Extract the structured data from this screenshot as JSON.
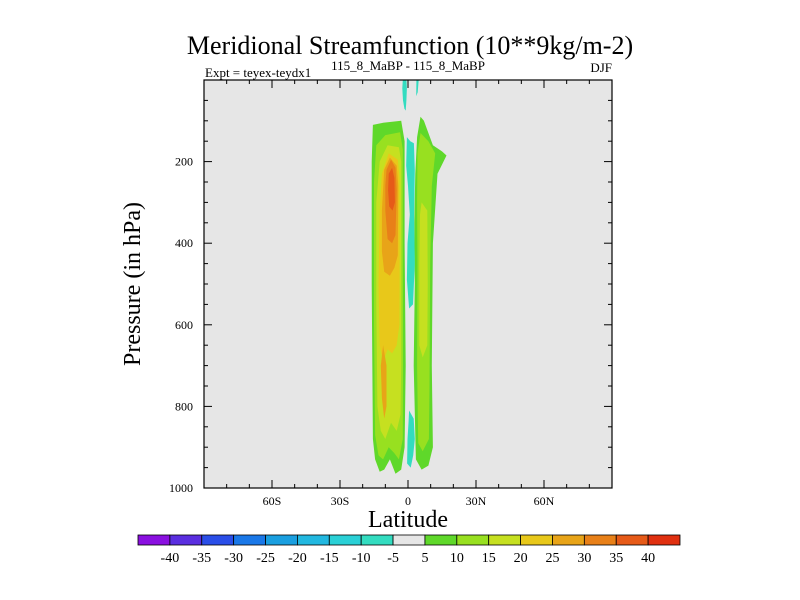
{
  "chart_data": {
    "type": "contour",
    "title": "Meridional Streamfunction (10**9kg/m-2)",
    "subtitle_left": "Expt = teyex-teydx1",
    "subtitle_center": "115_8_MaBP - 115_8_MaBP",
    "season": "DJF",
    "xlabel": "Latitude",
    "ylabel": "Pressure (in hPa)",
    "xlim": [
      -90,
      90
    ],
    "ylim": [
      0,
      1000
    ],
    "y_inverted": true,
    "x_ticks": [
      {
        "value": -60,
        "label": "60S"
      },
      {
        "value": -30,
        "label": "30S"
      },
      {
        "value": 0,
        "label": "0"
      },
      {
        "value": 30,
        "label": "30N"
      },
      {
        "value": 60,
        "label": "60N"
      }
    ],
    "y_ticks": [
      {
        "value": 200,
        "label": "200"
      },
      {
        "value": 400,
        "label": "400"
      },
      {
        "value": 600,
        "label": "600"
      },
      {
        "value": 800,
        "label": "800"
      },
      {
        "value": 1000,
        "label": "1000"
      }
    ],
    "background_color": "#e6e6e6",
    "colorbar": {
      "labels": [
        "-40",
        "-35",
        "-30",
        "-25",
        "-20",
        "-15",
        "-10",
        "-5",
        "5",
        "10",
        "15",
        "20",
        "25",
        "30",
        "35",
        "40"
      ],
      "colors": [
        "#8a10e0",
        "#5a2ee0",
        "#2a4ee8",
        "#1a78e8",
        "#1a9fe0",
        "#22b8e0",
        "#2ad0d6",
        "#33dcc0",
        "#e6e6e6",
        "#5fd82a",
        "#98e020",
        "#c6e020",
        "#e8c81a",
        "#e8a418",
        "#e88018",
        "#e65a18",
        "#e03010"
      ]
    },
    "features": [
      {
        "name": "positive-cell-outer",
        "level": 5,
        "value_sign": "positive",
        "lat_range": [
          -16,
          -2
        ],
        "pressure_range": [
          100,
          960
        ]
      },
      {
        "name": "positive-cell-core",
        "level": 35,
        "value_sign": "positive",
        "lat_range": [
          -10,
          -5
        ],
        "pressure_range": [
          230,
          320
        ]
      },
      {
        "name": "positive-cell-north",
        "level": 15,
        "value_sign": "positive",
        "lat_range": [
          3,
          13
        ],
        "pressure_range": [
          140,
          950
        ]
      },
      {
        "name": "negative-band-equator",
        "level": -5,
        "value_sign": "negative",
        "lat_range": [
          -1,
          3
        ],
        "pressure_range": [
          0,
          950
        ]
      }
    ]
  }
}
